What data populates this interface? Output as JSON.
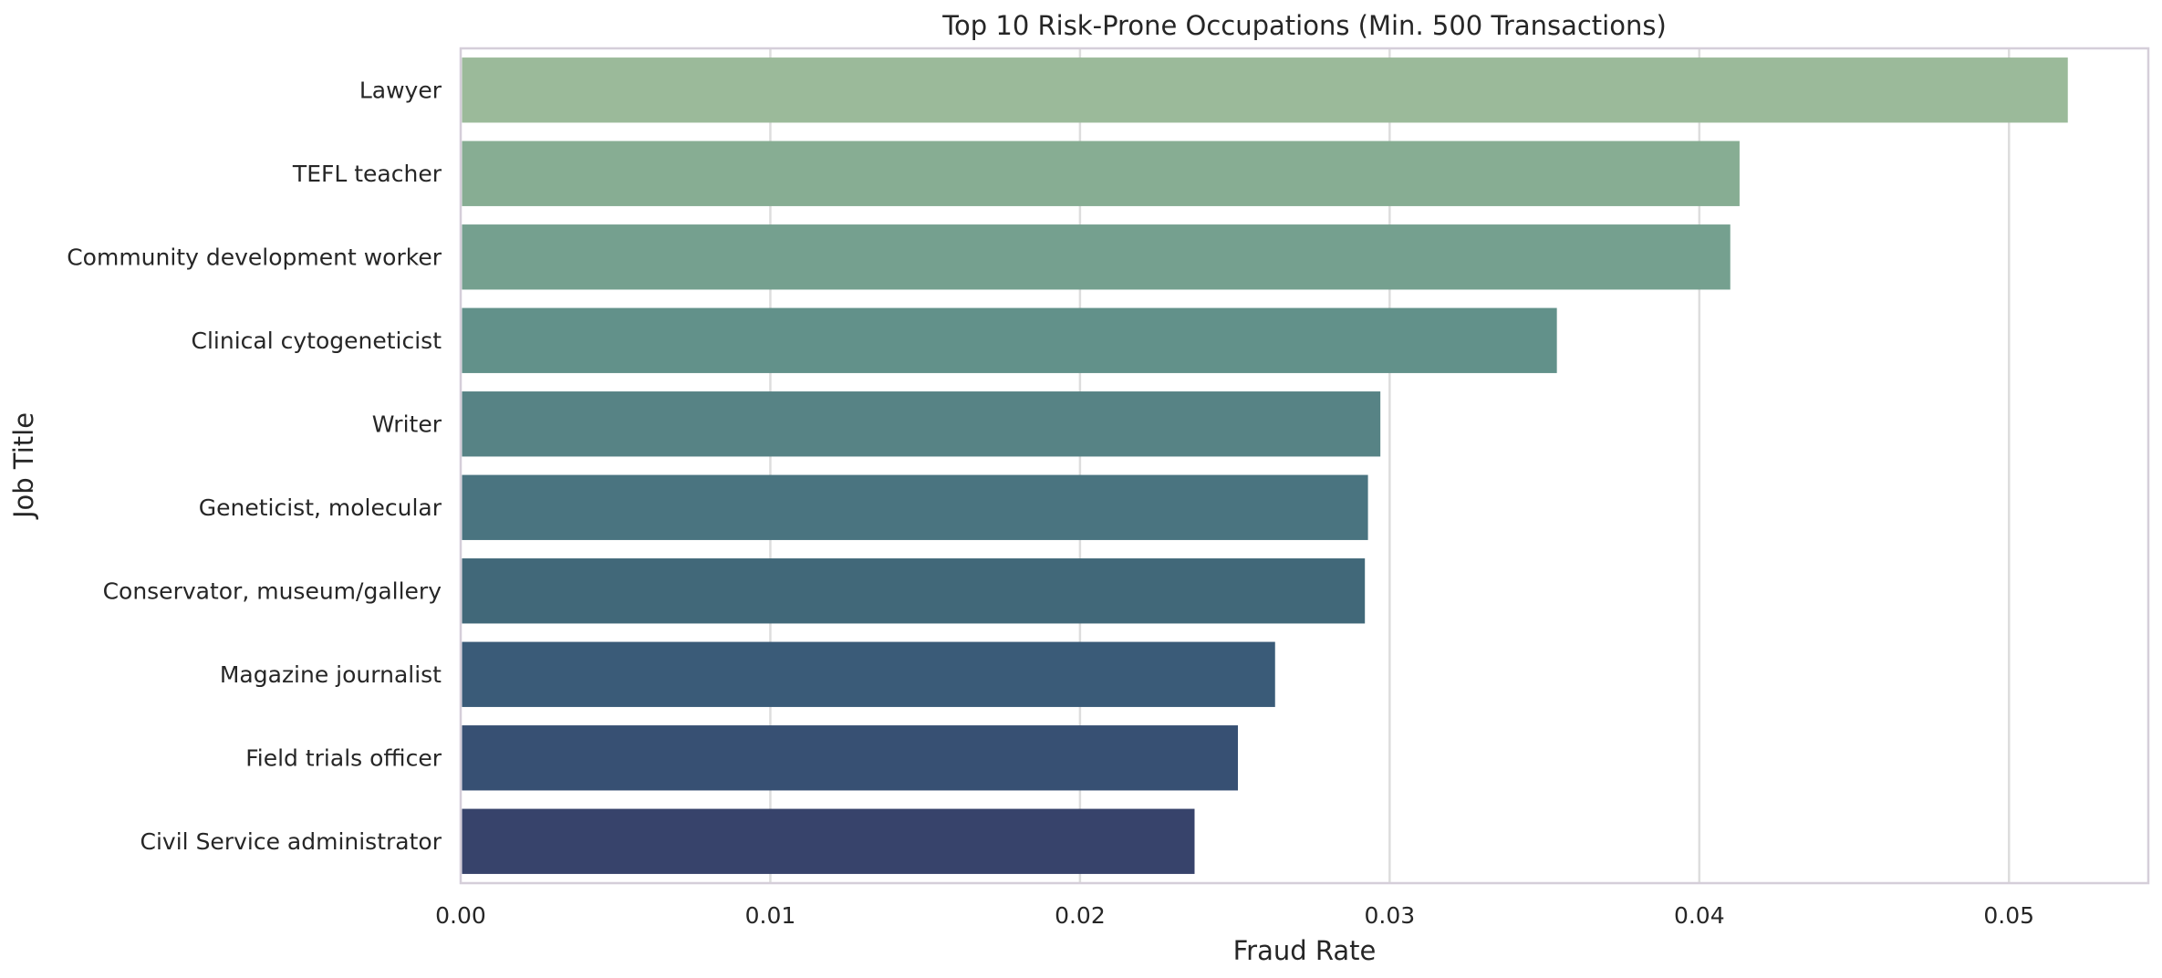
{
  "chart_data": {
    "type": "bar",
    "orientation": "horizontal",
    "title": "Top 10 Risk-Prone Occupations (Min. 500 Transactions)",
    "xlabel": "Fraud Rate",
    "ylabel": "Job Title",
    "categories": [
      "Lawyer",
      "TEFL teacher",
      "Community development worker",
      "Clinical cytogeneticist",
      "Writer",
      "Geneticist, molecular",
      "Conservator, museum/gallery",
      "Magazine journalist",
      "Field trials officer",
      "Civil Service administrator"
    ],
    "values": [
      0.0519,
      0.0413,
      0.041,
      0.0354,
      0.0297,
      0.0293,
      0.0292,
      0.0263,
      0.0251,
      0.0237
    ],
    "colors": [
      "#9bba9a",
      "#87ad93",
      "#75a08f",
      "#62918a",
      "#578385",
      "#4a7480",
      "#416879",
      "#3a5b78",
      "#375073",
      "#37436b"
    ],
    "xlim": [
      0,
      0.0545
    ],
    "xticks": [
      0.0,
      0.01,
      0.02,
      0.03,
      0.04,
      0.05
    ],
    "xtick_labels": [
      "0.00",
      "0.01",
      "0.02",
      "0.03",
      "0.04",
      "0.05"
    ],
    "grid": true,
    "grid_axis": "x",
    "frame_color": "#d5ced9",
    "grid_color": "#dddddd"
  }
}
